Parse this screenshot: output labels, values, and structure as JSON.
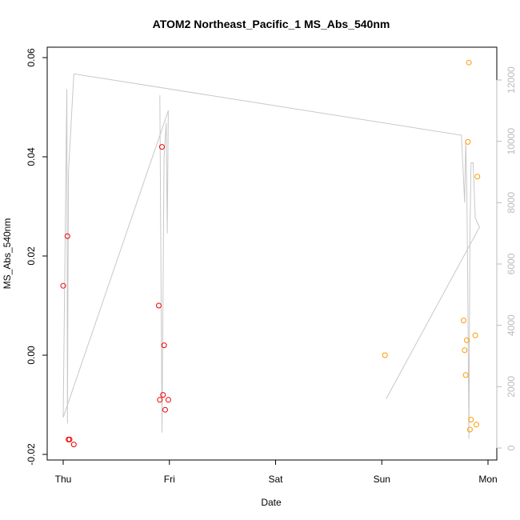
{
  "chart_data": {
    "type": "scatter",
    "title": "ATOM2 Northeast_Pacific_1 MS_Abs_540nm",
    "xlabel": "Date",
    "ylabel": "MS_Abs_540nm",
    "x_tick_labels": [
      "Thu",
      "Fri",
      "Sat",
      "Sun",
      "Mon"
    ],
    "xlim": [
      0,
      4
    ],
    "ylim": [
      -0.02,
      0.06
    ],
    "y_ticks": [
      -0.02,
      0.0,
      0.02,
      0.04,
      0.06
    ],
    "y_tick_labels": [
      "-0.02",
      "0.00",
      "0.02",
      "0.04",
      "0.06"
    ],
    "y2lim": [
      0,
      12000
    ],
    "y2_ticks": [
      0,
      2000,
      4000,
      6000,
      8000,
      10000,
      12000
    ],
    "y2_tick_labels": [
      "0",
      "2000",
      "4000",
      "6000",
      "8000",
      "10000",
      "12000"
    ],
    "series": [
      {
        "color": "#ee0000",
        "marker": "open-circle",
        "points": [
          [
            0.0,
            0.014
          ],
          [
            0.04,
            0.024
          ],
          [
            0.05,
            -0.017
          ],
          [
            0.06,
            -0.017
          ],
          [
            0.1,
            -0.018
          ],
          [
            0.9,
            0.01
          ],
          [
            0.91,
            -0.009
          ],
          [
            0.93,
            0.042
          ],
          [
            0.94,
            -0.008
          ],
          [
            0.95,
            0.002
          ],
          [
            0.96,
            -0.011
          ],
          [
            0.99,
            -0.009
          ]
        ]
      },
      {
        "color": "#ff9900",
        "marker": "open-circle",
        "points": [
          [
            3.03,
            0.0
          ],
          [
            3.77,
            0.007
          ],
          [
            3.78,
            0.001
          ],
          [
            3.79,
            -0.004
          ],
          [
            3.8,
            0.003
          ],
          [
            3.81,
            0.043
          ],
          [
            3.82,
            0.059
          ],
          [
            3.83,
            -0.015
          ],
          [
            3.84,
            -0.013
          ],
          [
            3.88,
            0.004
          ],
          [
            3.89,
            -0.014
          ],
          [
            3.9,
            0.036
          ]
        ]
      },
      {
        "color": "#c8c8c8",
        "marker": "line",
        "axis": "right",
        "points": [
          [
            0.0,
            1000
          ],
          [
            0.03,
            10500
          ],
          [
            0.035,
            11700
          ],
          [
            0.04,
            800
          ],
          [
            0.05,
            9000
          ],
          [
            0.1,
            12200
          ],
          [
            3.75,
            10200
          ],
          [
            3.78,
            8000
          ],
          [
            3.79,
            10000
          ],
          [
            3.8,
            8500
          ],
          [
            3.81,
            5000
          ],
          [
            3.82,
            300
          ],
          [
            3.83,
            7000
          ],
          [
            3.84,
            9300
          ],
          [
            3.86,
            9300
          ],
          [
            3.88,
            7500
          ],
          [
            3.92,
            7200
          ],
          [
            3.04,
            1600
          ]
        ]
      },
      {
        "color": "#c8c8c8",
        "marker": "line",
        "axis": "right",
        "points": [
          [
            0.0,
            1000
          ],
          [
            0.99,
            11000
          ],
          [
            0.98,
            7000
          ],
          [
            0.97,
            10600
          ],
          [
            0.95,
            9500
          ],
          [
            0.93,
            500
          ],
          [
            0.91,
            11500
          ]
        ]
      }
    ]
  }
}
